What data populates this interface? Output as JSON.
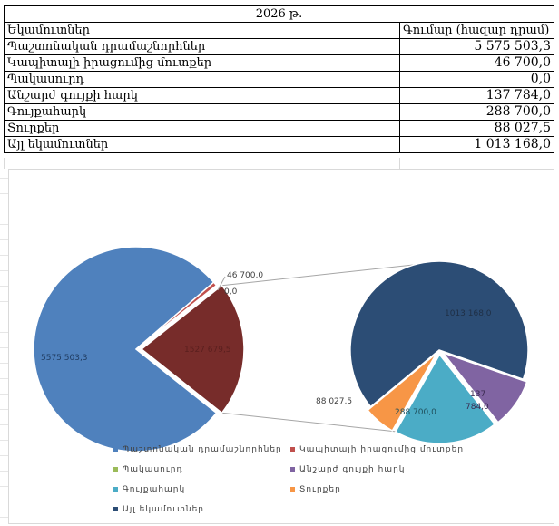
{
  "table": {
    "title": "2026 թ.",
    "header": {
      "col1": "Եկամուտներ",
      "col2": "Գումար (հազար դրամ)"
    },
    "rows": [
      {
        "label": "Պաշտոնական դրամաշնորհներ",
        "value": "5 575 503,3"
      },
      {
        "label": "Կապիտալի իրացումից մուտքեր",
        "value": "46 700,0"
      },
      {
        "label": "Պակասուրդ",
        "value": "0,0"
      },
      {
        "label": "Անշարժ գույքի հարկ",
        "value": "137 784,0"
      },
      {
        "label": "Գույքահարկ",
        "value": "288 700,0"
      },
      {
        "label": "Տուրքեր",
        "value": "88 027,5"
      },
      {
        "label": "Այլ եկամուտներ",
        "value": "1 013 168,0"
      }
    ]
  },
  "chart_data": {
    "type": "pie",
    "subtype": "pie-of-pie",
    "categories": [
      "Պաշտոնական դրամաշնորհներ",
      "Կապիտալի իրացումից մուտքեր",
      "Պակասուրդ",
      "Անշարժ գույքի հարկ",
      "Գույքահարկ",
      "Տուրքեր",
      "Այլ եկամուտներ"
    ],
    "values": [
      5575503.3,
      46700.0,
      0.0,
      137784.0,
      288700.0,
      88027.5,
      1013168.0
    ],
    "colors": [
      "#4f81bd",
      "#c0504d",
      "#9bbb59",
      "#8064a2",
      "#4bacc6",
      "#f79646",
      "#2c4d75"
    ],
    "secondary_categories": [
      "Անշարժ գույքի հարկ",
      "Գույքահարկ",
      "Տուրքեր",
      "Այլ եկամուտներ"
    ],
    "other_slice": {
      "label": "1527 679,5",
      "color": "#772c2a",
      "value": 1527679.5
    },
    "data_labels": {
      "main": "5575 503,3",
      "cap": "46 700,0",
      "def": "0,0",
      "other": "1527 679,5",
      "prop": "137\n784,0",
      "gouy": "288 700,0",
      "turq": "88 027,5",
      "ayl": "1013 168,0"
    },
    "legend_position": "bottom"
  }
}
